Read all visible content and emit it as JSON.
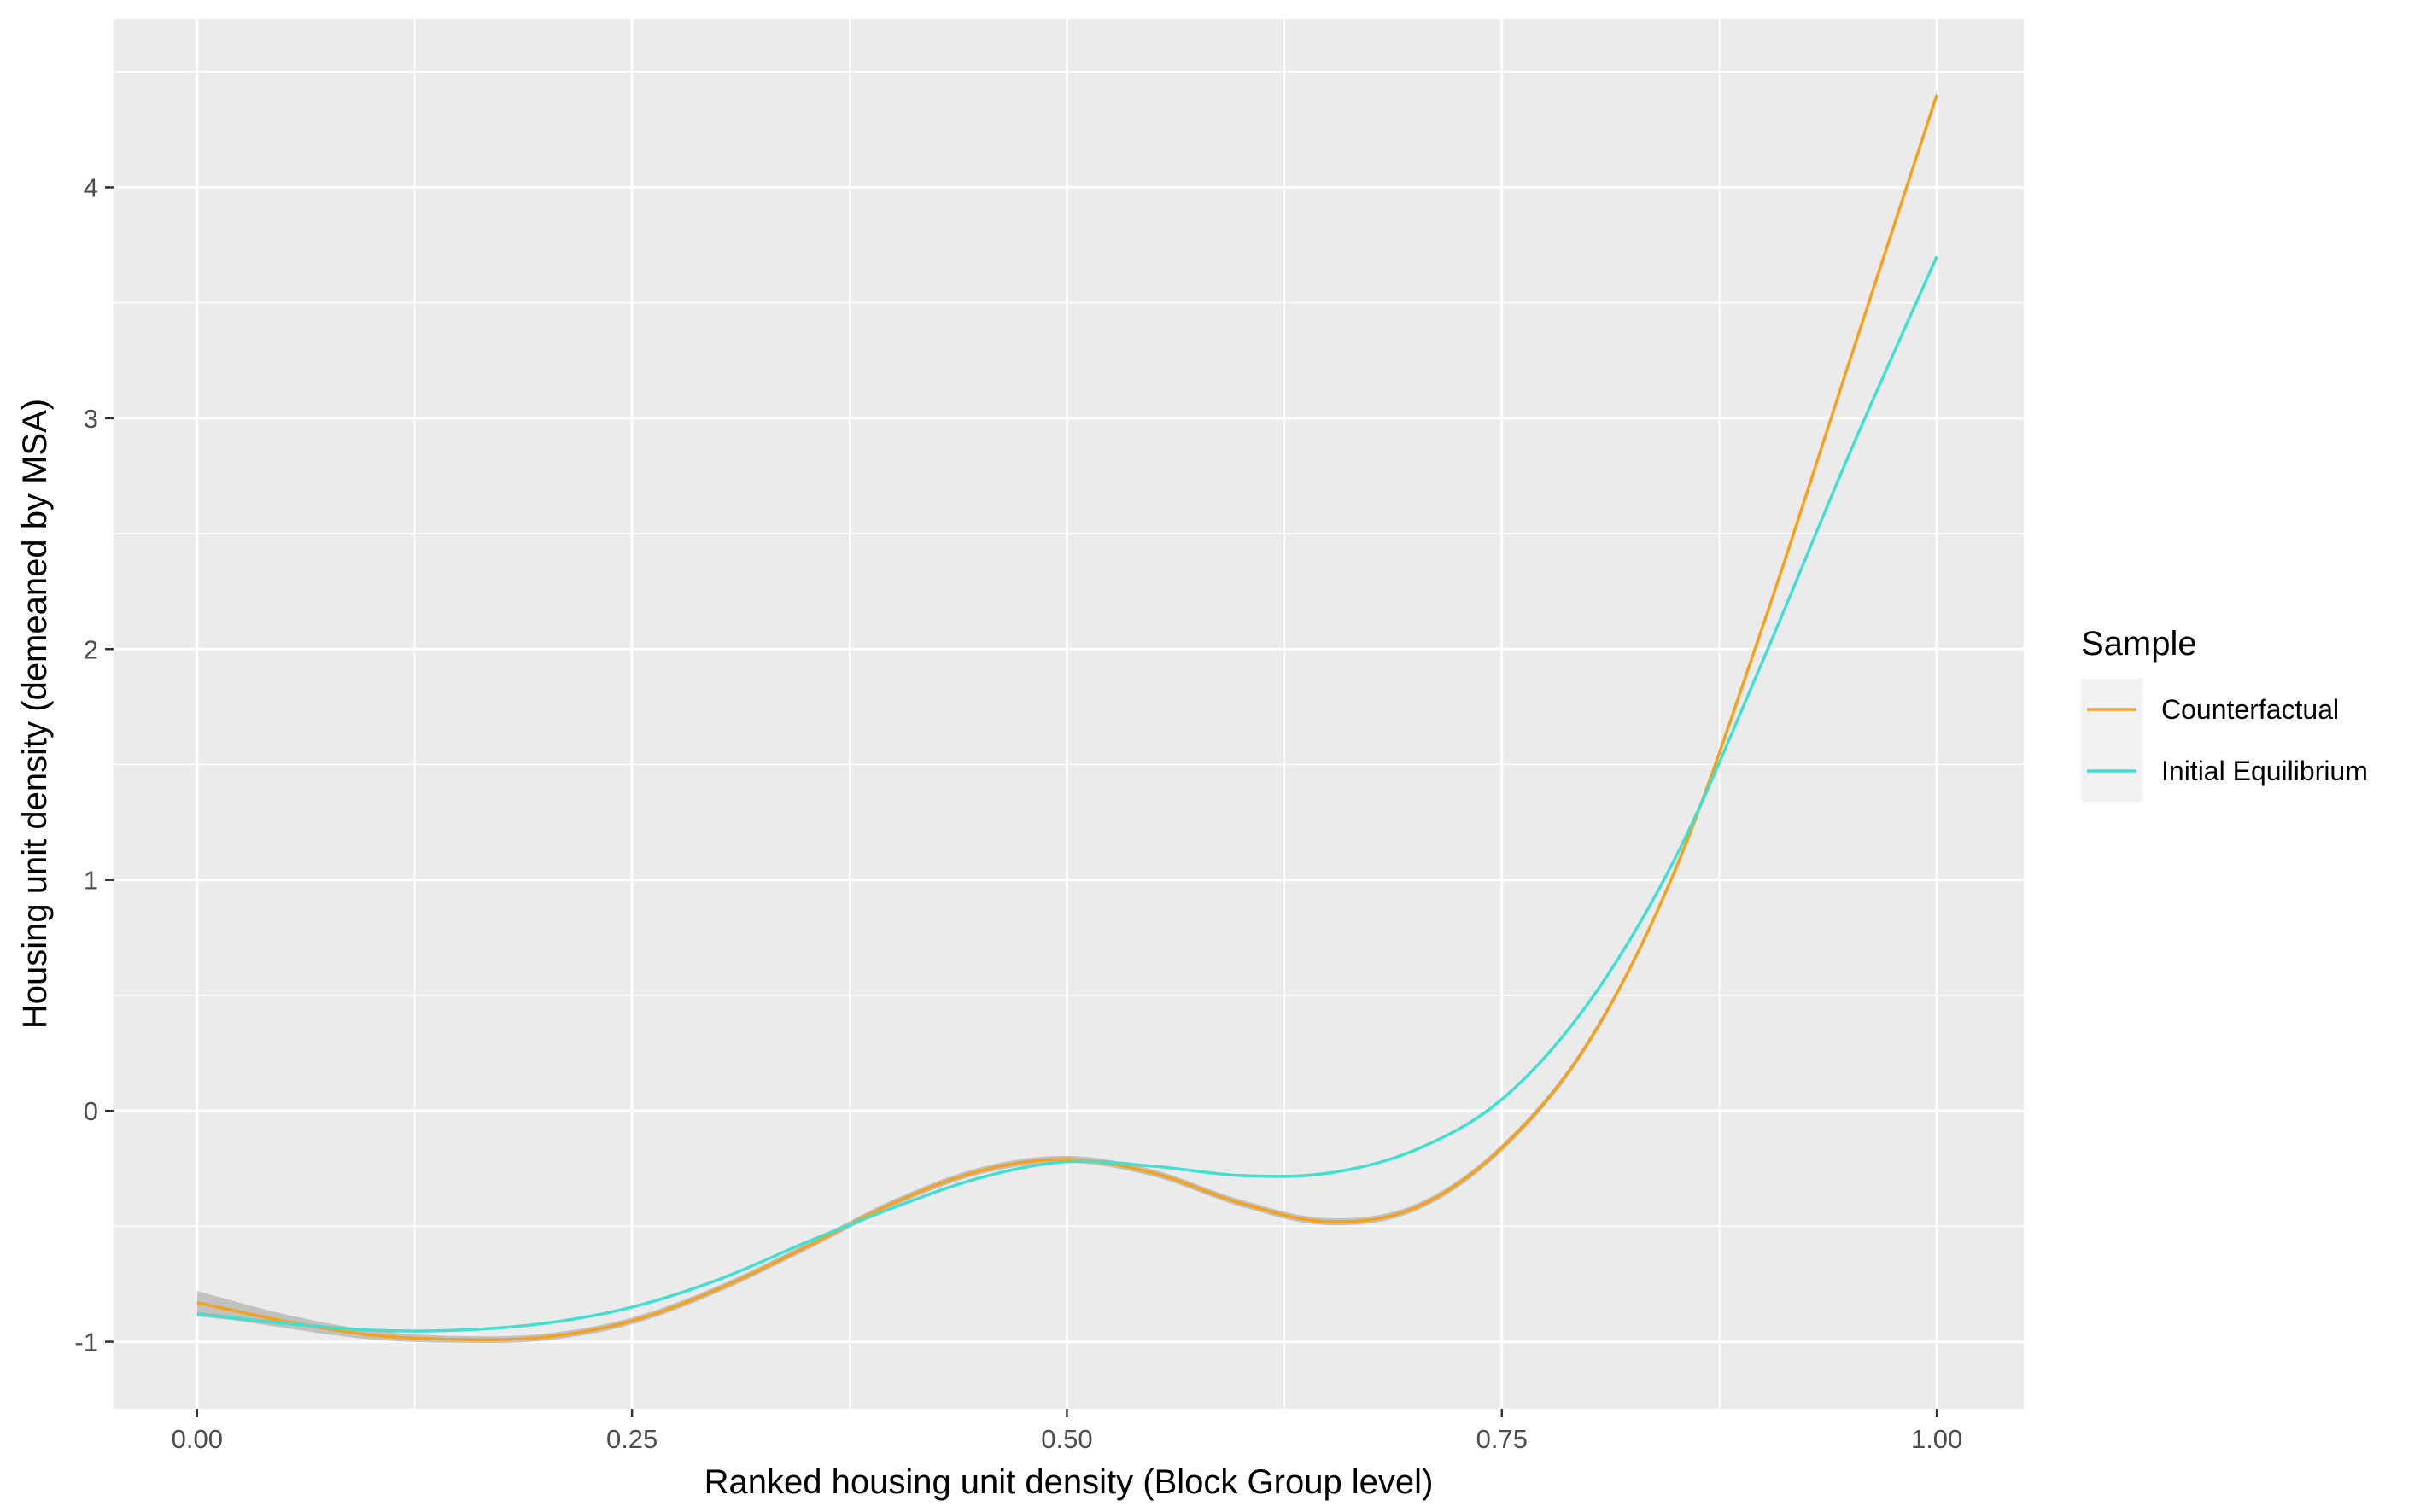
{
  "chart_data": {
    "type": "line",
    "xlabel": "Ranked housing unit density (Block Group level)",
    "ylabel": "Housing unit density (demeaned by MSA)",
    "xlim": [
      -0.048,
      1.05
    ],
    "ylim": [
      -1.29,
      4.73
    ],
    "x_ticks": [
      0.0,
      0.25,
      0.5,
      0.75,
      1.0
    ],
    "x_tick_labels": [
      "0.00",
      "0.25",
      "0.50",
      "0.75",
      "1.00"
    ],
    "y_ticks": [
      -1,
      0,
      1,
      2,
      3,
      4
    ],
    "y_tick_labels": [
      "-1",
      "0",
      "1",
      "2",
      "3",
      "4"
    ],
    "grid": true,
    "panel_background": "#ebebeb",
    "grid_color": "#ffffff",
    "confidence_band_color": "#b3b3b3",
    "legend": {
      "title": "Sample",
      "placement": "right"
    },
    "series": [
      {
        "name": "Counterfactual",
        "color": "#f5a11c",
        "x": [
          0.0,
          0.05,
          0.1,
          0.15,
          0.2,
          0.25,
          0.3,
          0.35,
          0.4,
          0.45,
          0.5,
          0.55,
          0.6,
          0.65,
          0.7,
          0.75,
          0.8,
          0.85,
          0.9,
          0.95,
          1.0
        ],
        "y": [
          -0.83,
          -0.91,
          -0.97,
          -0.99,
          -0.98,
          -0.91,
          -0.77,
          -0.59,
          -0.4,
          -0.26,
          -0.21,
          -0.27,
          -0.4,
          -0.48,
          -0.42,
          -0.16,
          0.3,
          1.05,
          2.1,
          3.25,
          4.4
        ],
        "band_halfwidth": [
          0.05,
          0.03,
          0.02,
          0.015,
          0.015,
          0.015,
          0.015,
          0.015,
          0.015,
          0.015,
          0.015,
          0.015,
          0.015,
          0.015,
          0.015,
          0.015,
          0.015,
          0.015,
          0.015,
          0.015,
          0.02
        ]
      },
      {
        "name": "Initial Equilibrium",
        "color": "#40e0d0",
        "x": [
          0.0,
          0.05,
          0.1,
          0.15,
          0.2,
          0.25,
          0.3,
          0.35,
          0.4,
          0.45,
          0.5,
          0.55,
          0.6,
          0.65,
          0.7,
          0.75,
          0.8,
          0.85,
          0.9,
          0.95,
          1.0
        ],
        "y": [
          -0.88,
          -0.92,
          -0.95,
          -0.95,
          -0.92,
          -0.85,
          -0.73,
          -0.57,
          -0.42,
          -0.29,
          -0.22,
          -0.24,
          -0.28,
          -0.27,
          -0.17,
          0.05,
          0.47,
          1.1,
          1.95,
          2.85,
          3.7
        ],
        "band_halfwidth": [
          0.01,
          0.008,
          0.006,
          0.006,
          0.006,
          0.006,
          0.006,
          0.006,
          0.006,
          0.006,
          0.006,
          0.006,
          0.006,
          0.006,
          0.006,
          0.006,
          0.006,
          0.006,
          0.006,
          0.006,
          0.01
        ]
      }
    ]
  }
}
